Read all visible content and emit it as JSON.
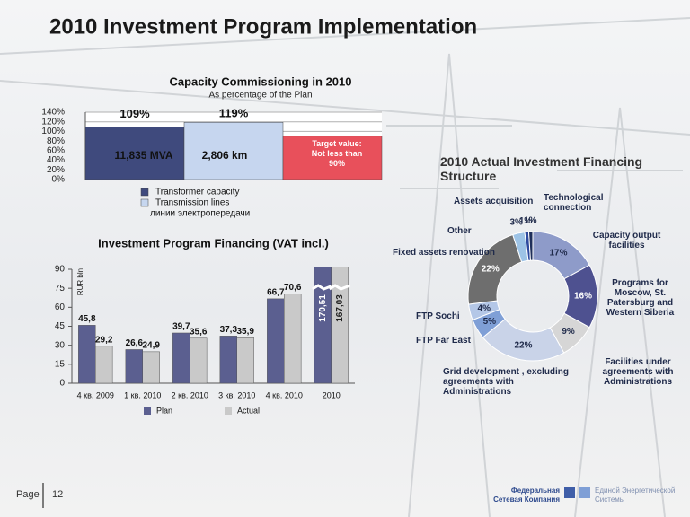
{
  "title": "2010 Investment Program Implementation",
  "footer": {
    "page": "Page",
    "number": "12",
    "company_1": "Федеральная Сетевая Компания",
    "company_2": "Единой Энергетической Системы"
  },
  "chart_data": [
    {
      "type": "bar",
      "title": "Capacity Commissioning  in 2010",
      "subtitle": "As percentage of the Plan",
      "series": [
        {
          "name": "Transformer capacity",
          "color": "#3f4a7d",
          "values": [
            109
          ],
          "value_labels": [
            "109%"
          ],
          "annotation": "11,835 MVA"
        },
        {
          "name": "Transmission lines",
          "color": "#c6d6ef",
          "values": [
            119
          ],
          "value_labels": [
            "119%"
          ],
          "annotation": "2,806 km"
        }
      ],
      "target": {
        "value": 90,
        "label": "Target value: Not less than 90%",
        "color": "#e8505b"
      },
      "legend_extra": "линии электропередачи",
      "ylim": [
        0,
        140
      ],
      "yticks": [
        {
          "value": 0,
          "label": "0%"
        },
        {
          "value": 20,
          "label": "20%"
        },
        {
          "value": 40,
          "label": "40%"
        },
        {
          "value": 60,
          "label": "60%"
        },
        {
          "value": 80,
          "label": "80%"
        },
        {
          "value": 100,
          "label": "100%"
        },
        {
          "value": 120,
          "label": "120%"
        },
        {
          "value": 140,
          "label": "140%"
        }
      ],
      "grid": true
    },
    {
      "type": "bar",
      "title": "Investment Program Financing (VAT incl.)",
      "ylabel": "RUR bln",
      "categories": [
        "4 кв. 2009",
        "1 кв. 2010",
        "2 кв. 2010",
        "3 кв. 2010",
        "4 кв. 2010",
        "2010"
      ],
      "series": [
        {
          "name": "Plan",
          "color": "#5b5f90",
          "values": [
            45.8,
            26.6,
            39.7,
            37.3,
            66.7,
            170.51
          ],
          "value_labels": [
            "45,8",
            "26,6",
            "39,7",
            "37,3",
            "66,7",
            "170,51"
          ]
        },
        {
          "name": "Actual",
          "color": "#c9c9c9",
          "values": [
            29.2,
            24.9,
            35.6,
            35.9,
            70.6,
            167.03
          ],
          "value_labels": [
            "29,2",
            "24,9",
            "35,6",
            "35,9",
            "70,6",
            "167,03"
          ]
        }
      ],
      "ylim": [
        0,
        90
      ],
      "yticks": [
        0,
        15,
        30,
        45,
        60,
        75,
        90
      ],
      "grid": false
    },
    {
      "type": "pie",
      "title": "2010 Actual Investment Financing Structure",
      "donut": true,
      "categories": [
        "Capacity output facilities",
        "Programs for Moscow, St. Patersburg and Western Siberia",
        "Facilities under agreements with Administrations",
        "Grid development , excluding agreements with Administrations",
        "FTP Far East",
        "FTP Sochi",
        "Fixed assets renovation",
        "Other",
        "Assets acquisition",
        "Technological connection"
      ],
      "values": [
        17,
        16,
        9,
        22,
        5,
        4,
        22,
        3,
        1,
        1
      ],
      "value_labels": [
        "17%",
        "16%",
        "9%",
        "22%",
        "5%",
        "4%",
        "22%",
        "3%",
        "1%",
        "1%"
      ],
      "colors": [
        "#8e9bc9",
        "#4e5190",
        "#d6d6d6",
        "#c9d3e8",
        "#7f9fd6",
        "#b4c7e7",
        "#6e6e6e",
        "#9dc3e6",
        "#2e4a9e",
        "#1f2f5a"
      ]
    }
  ]
}
